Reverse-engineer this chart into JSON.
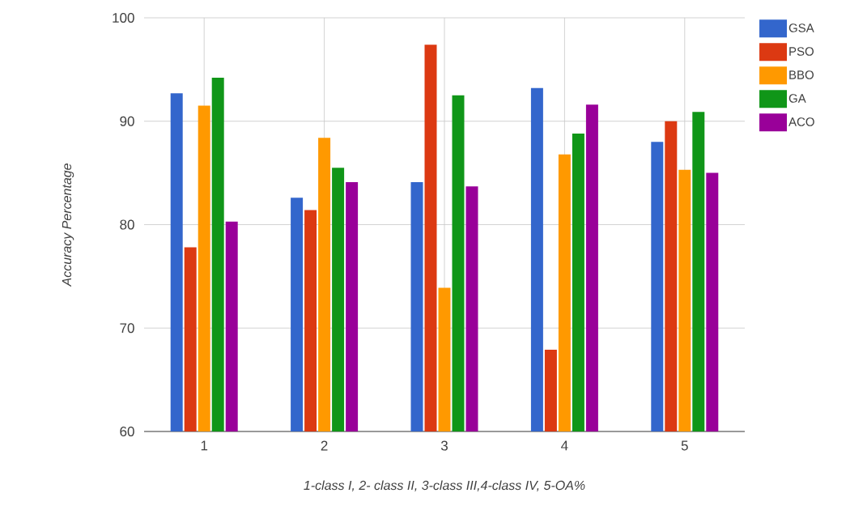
{
  "chart_data": {
    "type": "bar",
    "xlabel": "1-class I, 2- class II, 3-class III,4-class IV, 5-OA%",
    "ylabel": "Accuracy Percentage",
    "categories": [
      "1",
      "2",
      "3",
      "4",
      "5"
    ],
    "series": [
      {
        "name": "GSA",
        "color": "#3366cc",
        "values": [
          92.7,
          82.6,
          84.1,
          93.2,
          88.0
        ]
      },
      {
        "name": "PSO",
        "color": "#dc3912",
        "values": [
          77.8,
          81.4,
          97.4,
          67.9,
          90.0
        ]
      },
      {
        "name": "BBO",
        "color": "#ff9900",
        "values": [
          91.5,
          88.4,
          73.9,
          86.8,
          85.3
        ]
      },
      {
        "name": "GA",
        "color": "#109618",
        "values": [
          94.2,
          85.5,
          92.5,
          88.8,
          90.9
        ]
      },
      {
        "name": "ACO",
        "color": "#990099",
        "values": [
          80.3,
          84.1,
          83.7,
          91.6,
          85.0
        ]
      }
    ],
    "ylim": [
      60,
      100
    ],
    "yticks": [
      60,
      70,
      80,
      90,
      100
    ],
    "grid": true,
    "legend": "top right"
  }
}
